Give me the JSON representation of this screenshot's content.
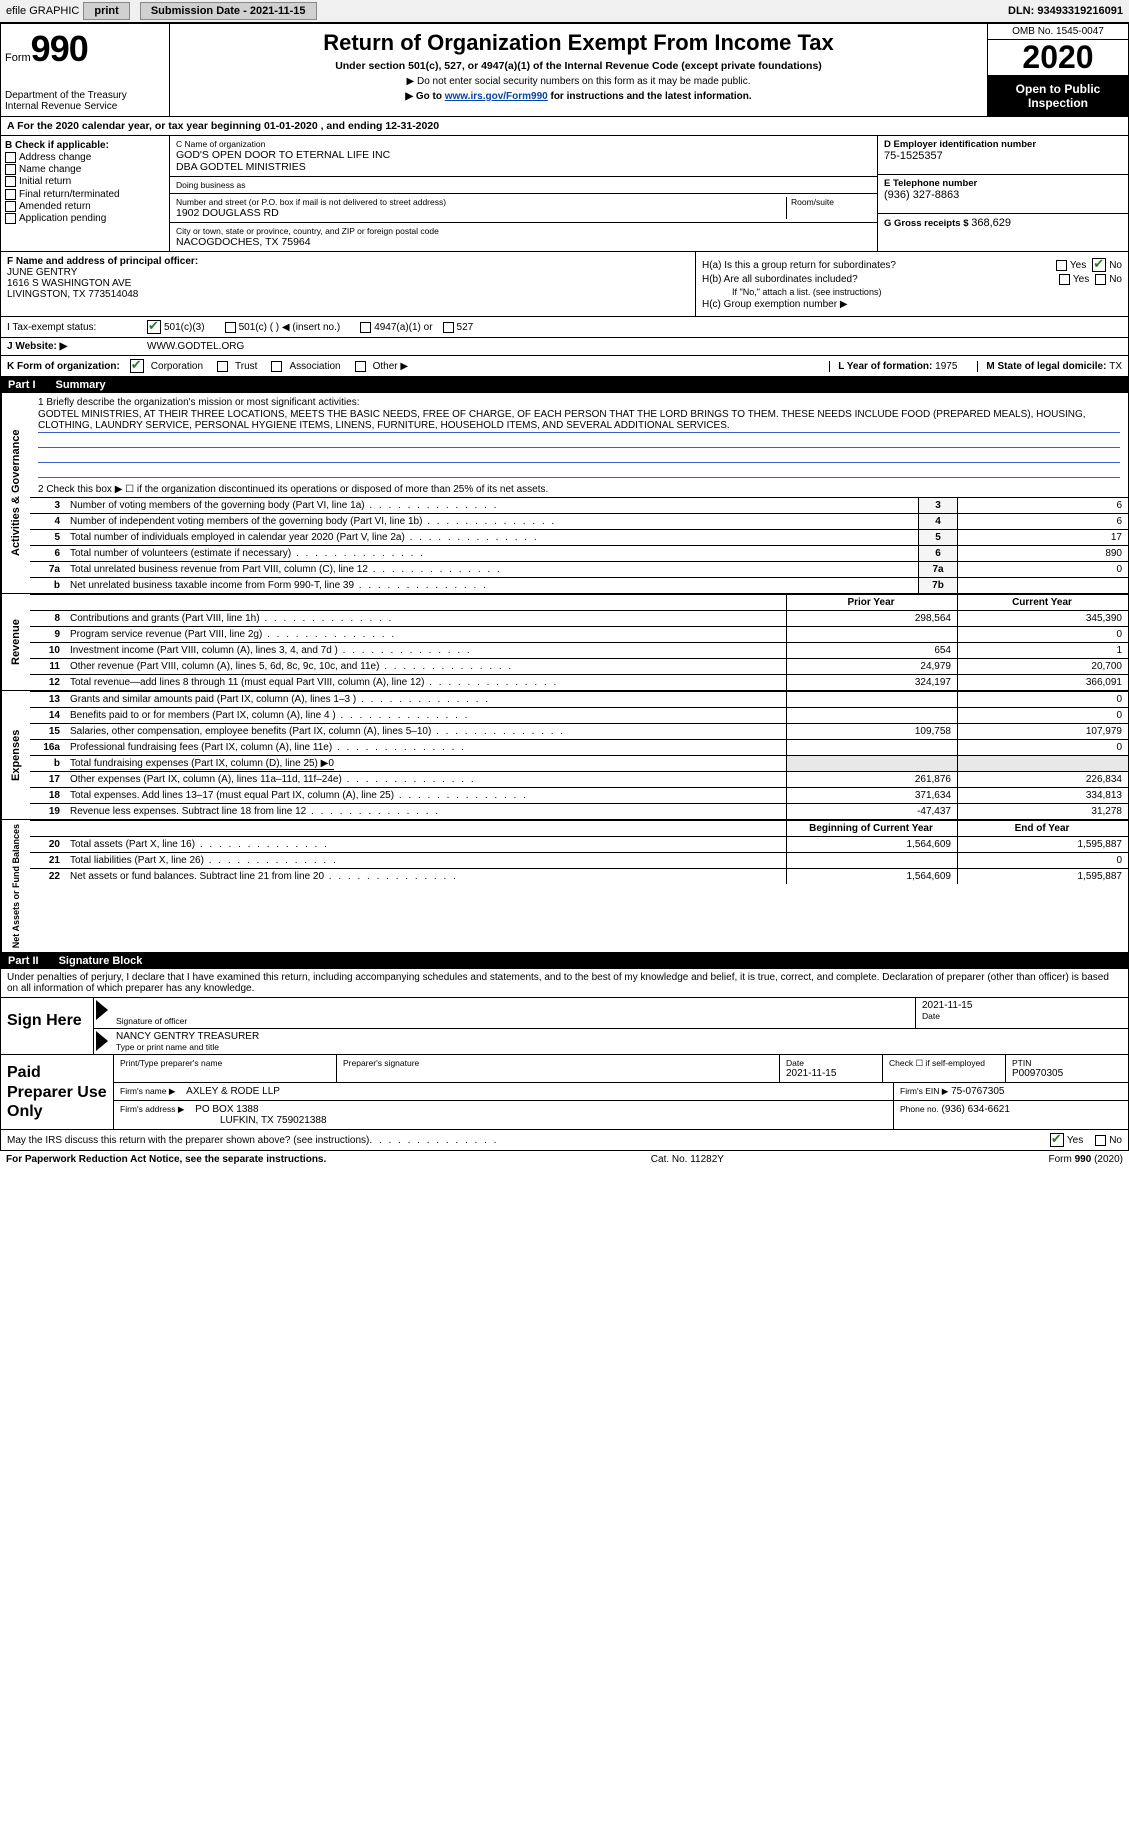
{
  "top": {
    "efile_label": "efile GRAPHIC",
    "print_label": "print",
    "sub_date_label": "Submission Date - 2021-11-15",
    "dln_label": "DLN: 93493319216091"
  },
  "header": {
    "form_word": "Form",
    "form_num": "990",
    "dept": "Department of the Treasury\nInternal Revenue Service",
    "title": "Return of Organization Exempt From Income Tax",
    "sub": "Under section 501(c), 527, or 4947(a)(1) of the Internal Revenue Code (except private foundations)",
    "note": "▶ Do not enter social security numbers on this form as it may be made public.",
    "link_pre": "▶ Go to ",
    "link": "www.irs.gov/Form990",
    "link_post": " for instructions and the latest information.",
    "omb": "OMB No. 1545-0047",
    "year": "2020",
    "open": "Open to Public Inspection"
  },
  "period": "A For the 2020 calendar year, or tax year beginning 01-01-2020   , and ending 12-31-2020",
  "boxB": {
    "header": "B Check if applicable:",
    "items": [
      "Address change",
      "Name change",
      "Initial return",
      "Final return/terminated",
      "Amended return",
      "Application pending"
    ]
  },
  "boxC": {
    "name_label": "C Name of organization",
    "name": "GOD'S OPEN DOOR TO ETERNAL LIFE INC",
    "dba": "DBA GODTEL MINISTRIES",
    "dba_label": "Doing business as",
    "addr_label": "Number and street (or P.O. box if mail is not delivered to street address)",
    "room_label": "Room/suite",
    "addr": "1902 DOUGLASS RD",
    "city_label": "City or town, state or province, country, and ZIP or foreign postal code",
    "city": "NACOGDOCHES, TX  75964"
  },
  "boxD": {
    "label": "D Employer identification number",
    "val": "75-1525357"
  },
  "boxE": {
    "label": "E Telephone number",
    "val": "(936) 327-8863"
  },
  "boxG": {
    "label": "G Gross receipts $",
    "val": "368,629"
  },
  "boxF": {
    "label": "F  Name and address of principal officer:",
    "name": "JUNE GENTRY",
    "addr1": "1616 S WASHINGTON AVE",
    "addr2": "LIVINGSTON, TX  773514048"
  },
  "boxH": {
    "a": "H(a)  Is this a group return for subordinates?",
    "b": "H(b)  Are all subordinates included?",
    "b_note": "If \"No,\" attach a list. (see instructions)",
    "c": "H(c)  Group exemption number ▶",
    "yes": "Yes",
    "no": "No"
  },
  "boxI": {
    "label": "I   Tax-exempt status:",
    "opts": [
      "501(c)(3)",
      "501(c) (  ) ◀ (insert no.)",
      "4947(a)(1) or",
      "527"
    ]
  },
  "boxJ": {
    "label": "J  Website: ▶",
    "val": " WWW.GODTEL.ORG"
  },
  "boxK": {
    "label": "K Form of organization:",
    "opts": [
      "Corporation",
      "Trust",
      "Association",
      "Other ▶"
    ]
  },
  "boxL": {
    "label": "L Year of formation: ",
    "val": "1975"
  },
  "boxM": {
    "label": "M State of legal domicile: ",
    "val": "TX"
  },
  "part1": {
    "num": "Part I",
    "title": "Summary"
  },
  "vtabs": {
    "gov": "Activities & Governance",
    "rev": "Revenue",
    "exp": "Expenses",
    "net": "Net Assets or Fund Balances"
  },
  "line1": {
    "label": "1  Briefly describe the organization's mission or most significant activities:",
    "text": "GODTEL MINISTRIES, AT THEIR THREE LOCATIONS, MEETS THE BASIC NEEDS, FREE OF CHARGE, OF EACH PERSON THAT THE LORD BRINGS TO THEM. THESE NEEDS INCLUDE FOOD (PREPARED MEALS), HOUSING, CLOTHING, LAUNDRY SERVICE, PERSONAL HYGIENE ITEMS, LINENS, FURNITURE, HOUSEHOLD ITEMS, AND SEVERAL ADDITIONAL SERVICES."
  },
  "line2": "2   Check this box ▶ ☐ if the organization discontinued its operations or disposed of more than 25% of its net assets.",
  "gov_lines": [
    {
      "n": "3",
      "label": "Number of voting members of the governing body (Part VI, line 1a)",
      "box": "3",
      "val": "6"
    },
    {
      "n": "4",
      "label": "Number of independent voting members of the governing body (Part VI, line 1b)",
      "box": "4",
      "val": "6"
    },
    {
      "n": "5",
      "label": "Total number of individuals employed in calendar year 2020 (Part V, line 2a)",
      "box": "5",
      "val": "17"
    },
    {
      "n": "6",
      "label": "Total number of volunteers (estimate if necessary)",
      "box": "6",
      "val": "890"
    },
    {
      "n": "7a",
      "label": "Total unrelated business revenue from Part VIII, column (C), line 12",
      "box": "7a",
      "val": "0"
    },
    {
      "n": "b",
      "label": "Net unrelated business taxable income from Form 990-T, line 39",
      "box": "7b",
      "val": ""
    }
  ],
  "col_hdr": {
    "prior": "Prior Year",
    "current": "Current Year"
  },
  "rev_lines": [
    {
      "n": "8",
      "label": "Contributions and grants (Part VIII, line 1h)",
      "p": "298,564",
      "c": "345,390"
    },
    {
      "n": "9",
      "label": "Program service revenue (Part VIII, line 2g)",
      "p": "",
      "c": "0"
    },
    {
      "n": "10",
      "label": "Investment income (Part VIII, column (A), lines 3, 4, and 7d )",
      "p": "654",
      "c": "1"
    },
    {
      "n": "11",
      "label": "Other revenue (Part VIII, column (A), lines 5, 6d, 8c, 9c, 10c, and 11e)",
      "p": "24,979",
      "c": "20,700"
    },
    {
      "n": "12",
      "label": "Total revenue—add lines 8 through 11 (must equal Part VIII, column (A), line 12)",
      "p": "324,197",
      "c": "366,091"
    }
  ],
  "exp_lines": [
    {
      "n": "13",
      "label": "Grants and similar amounts paid (Part IX, column (A), lines 1–3 )",
      "p": "",
      "c": "0"
    },
    {
      "n": "14",
      "label": "Benefits paid to or for members (Part IX, column (A), line 4 )",
      "p": "",
      "c": "0"
    },
    {
      "n": "15",
      "label": "Salaries, other compensation, employee benefits (Part IX, column (A), lines 5–10)",
      "p": "109,758",
      "c": "107,979"
    },
    {
      "n": "16a",
      "label": "Professional fundraising fees (Part IX, column (A), line 11e)",
      "p": "",
      "c": "0"
    },
    {
      "n": "b",
      "label": "Total fundraising expenses (Part IX, column (D), line 25) ▶0",
      "p": "",
      "c": "",
      "noval": true
    },
    {
      "n": "17",
      "label": "Other expenses (Part IX, column (A), lines 11a–11d, 11f–24e)",
      "p": "261,876",
      "c": "226,834"
    },
    {
      "n": "18",
      "label": "Total expenses. Add lines 13–17 (must equal Part IX, column (A), line 25)",
      "p": "371,634",
      "c": "334,813"
    },
    {
      "n": "19",
      "label": "Revenue less expenses. Subtract line 18 from line 12",
      "p": "-47,437",
      "c": "31,278"
    }
  ],
  "net_hdr": {
    "begin": "Beginning of Current Year",
    "end": "End of Year"
  },
  "net_lines": [
    {
      "n": "20",
      "label": "Total assets (Part X, line 16)",
      "p": "1,564,609",
      "c": "1,595,887"
    },
    {
      "n": "21",
      "label": "Total liabilities (Part X, line 26)",
      "p": "",
      "c": "0"
    },
    {
      "n": "22",
      "label": "Net assets or fund balances. Subtract line 21 from line 20",
      "p": "1,564,609",
      "c": "1,595,887"
    }
  ],
  "part2": {
    "num": "Part II",
    "title": "Signature Block"
  },
  "penalty": "Under penalties of perjury, I declare that I have examined this return, including accompanying schedules and statements, and to the best of my knowledge and belief, it is true, correct, and complete. Declaration of preparer (other than officer) is based on all information of which preparer has any knowledge.",
  "sign": {
    "here": "Sign Here",
    "sig_label": "Signature of officer",
    "date_label": "Date",
    "date": "2021-11-15",
    "name": "NANCY GENTRY TREASURER",
    "name_label": "Type or print name and title"
  },
  "prep": {
    "title": "Paid Preparer Use Only",
    "r1": {
      "c1": "Print/Type preparer's name",
      "c2": "Preparer's signature",
      "c3": "Date",
      "c3v": "2021-11-15",
      "c4": "Check ☐ if self-employed",
      "c5": "PTIN",
      "c5v": "P00970305"
    },
    "r2": {
      "c1": "Firm's name    ▶",
      "c1v": "AXLEY & RODE LLP",
      "c2": "Firm's EIN ▶",
      "c2v": "75-0767305"
    },
    "r3": {
      "c1": "Firm's address ▶",
      "c1v": "PO BOX 1388",
      "c1v2": "LUFKIN, TX  759021388",
      "c2": "Phone no.",
      "c2v": "(936) 634-6621"
    }
  },
  "discuss": {
    "q": "May the IRS discuss this return with the preparer shown above? (see instructions)",
    "yes": "Yes",
    "no": "No"
  },
  "footer": {
    "l": "For Paperwork Reduction Act Notice, see the separate instructions.",
    "m": "Cat. No. 11282Y",
    "r": "Form 990 (2020)"
  },
  "colors": {
    "link": "#0645ad",
    "rule_blue": "#3b5fc4",
    "check_green": "#2a7a2a"
  }
}
